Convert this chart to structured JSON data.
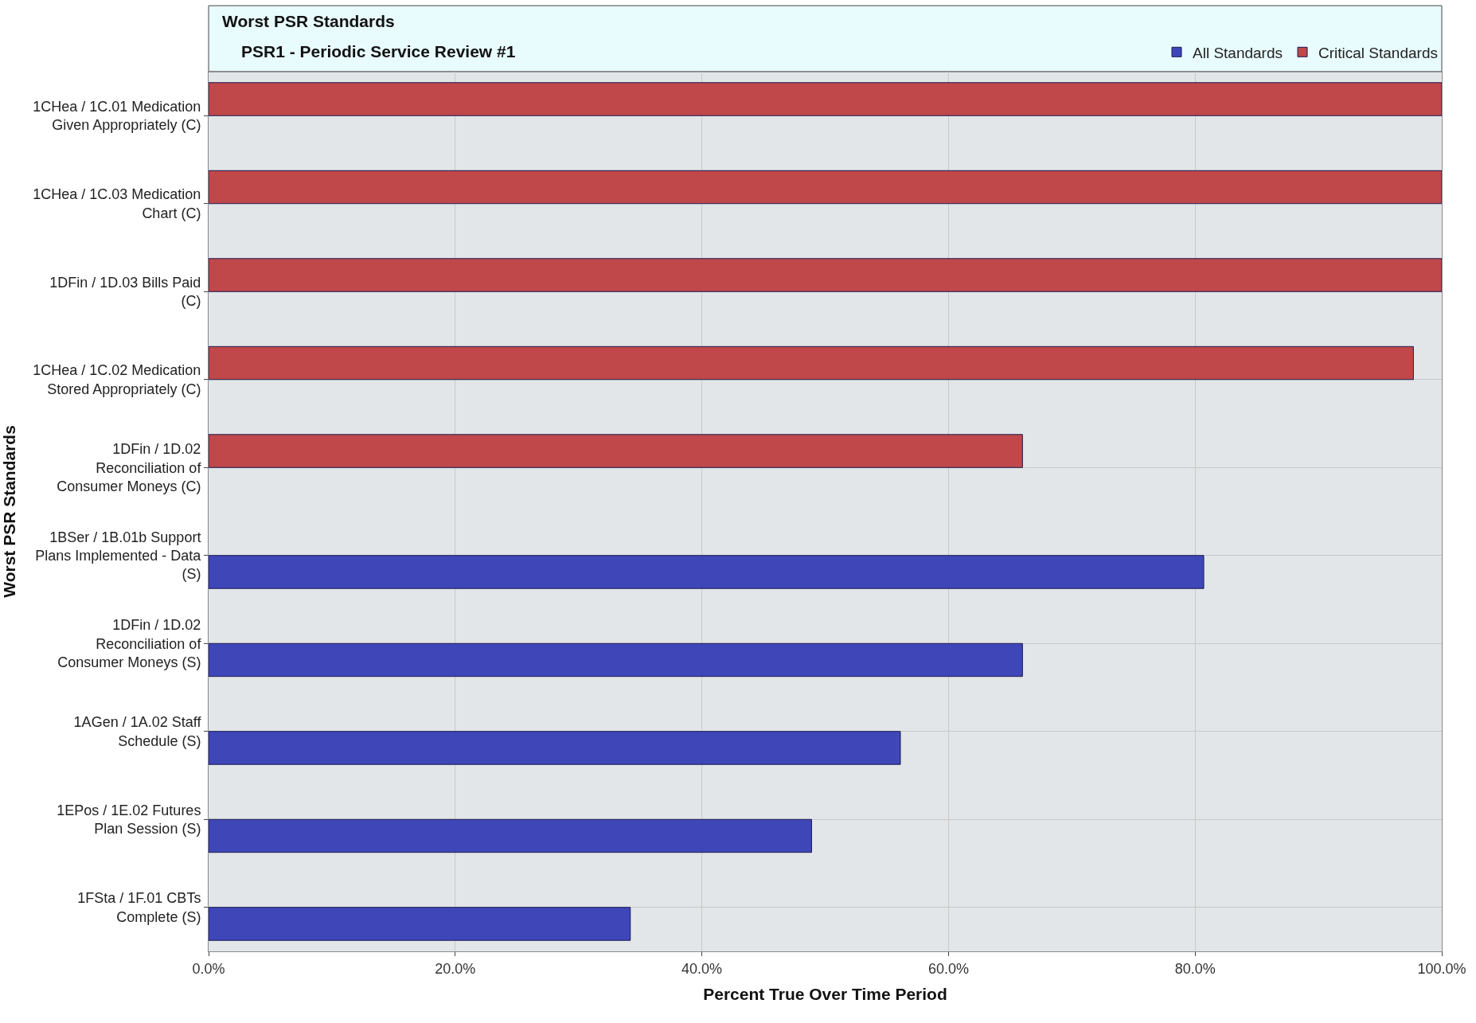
{
  "chart_data": {
    "type": "bar",
    "orientation": "horizontal",
    "title": "Worst PSR Standards",
    "subtitle": "PSR1 - Periodic Service Review #1",
    "xlabel": "Percent True Over Time Period",
    "ylabel": "Worst PSR Standards",
    "categories": [
      "1CHea / 1C.01 Medication Given Appropriately (C)",
      "1CHea / 1C.03 Medication Chart (C)",
      "1DFin / 1D.03 Bills Paid (C)",
      "1CHea / 1C.02 Medication Stored Appropriately (C)",
      "1DFin / 1D.02 Reconciliation of Consumer Moneys (C)",
      "1BSer / 1B.01b Support Plans Implemented - Data  (S)",
      "1DFin / 1D.02 Reconciliation of Consumer Moneys (S)",
      "1AGen / 1A.02 Staff Schedule (S)",
      "1EPos / 1E.02 Futures Plan Session (S)",
      "1FSta / 1F.01 CBTs Complete (S)"
    ],
    "series": [
      {
        "name": "Critical Standards",
        "color": "#c0484a",
        "values": [
          100,
          100,
          100,
          97.7,
          66.0,
          null,
          null,
          null,
          null,
          null
        ]
      },
      {
        "name": "All Standards",
        "color": "#3f46b8",
        "values": [
          null,
          null,
          null,
          null,
          null,
          80.7,
          66.0,
          56.1,
          48.9,
          34.2
        ]
      }
    ],
    "xlim": [
      0,
      100
    ],
    "xticks": [
      {
        "value": 0,
        "label": "0.0%"
      },
      {
        "value": 20,
        "label": "20.0%"
      },
      {
        "value": 40,
        "label": "40.0%"
      },
      {
        "value": 60,
        "label": "60.0%"
      },
      {
        "value": 80,
        "label": "80.0%"
      },
      {
        "value": 100,
        "label": "100.0%"
      }
    ],
    "grid": true,
    "legend": "top right"
  }
}
